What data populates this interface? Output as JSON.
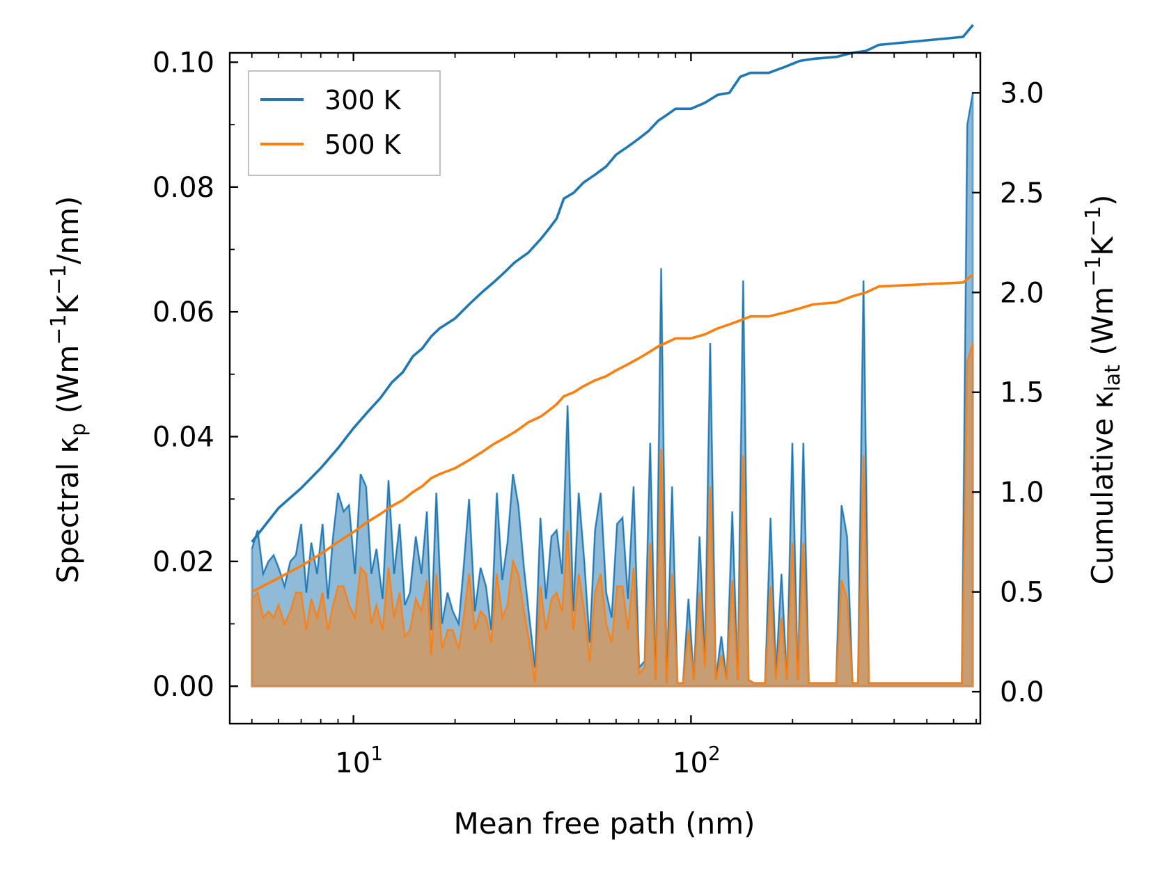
{
  "chart_data": {
    "type": "area+line (dual y-axis)",
    "xscale": "log",
    "xlim": [
      4.3,
      720
    ],
    "xlabel": "Mean free path (nm)",
    "x_tick_labels": [
      {
        "base": "10",
        "exp": "1",
        "value": 10
      },
      {
        "base": "10",
        "exp": "2",
        "value": 100
      }
    ],
    "left_axis": {
      "label_main": "Spectral κ",
      "label_sub": "p",
      "label_units_a": " (Wm",
      "label_sup_a": "−1",
      "label_units_b": "K",
      "label_sup_b": "−1",
      "label_units_c": "/nm)",
      "ylim": [
        -0.006,
        0.1015
      ],
      "ticks": [
        0.0,
        0.02,
        0.04,
        0.06,
        0.08,
        0.1
      ],
      "tick_labels": [
        "0.00",
        "0.02",
        "0.04",
        "0.06",
        "0.08",
        "0.10"
      ]
    },
    "right_axis": {
      "label_main": "Cumulative κ",
      "label_sub": "lat",
      "label_units_a": " (Wm",
      "label_sup_a": "−1",
      "label_units_b": "K",
      "label_sup_b": "−1",
      "label_units_c": ")",
      "ylim": [
        -0.16,
        3.2
      ],
      "ticks": [
        0.0,
        0.5,
        1.0,
        1.5,
        2.0,
        2.5,
        3.0
      ],
      "tick_labels": [
        "0.0",
        "0.5",
        "1.0",
        "1.5",
        "2.0",
        "2.5",
        "3.0"
      ]
    },
    "legend": {
      "position": "top-left",
      "entries": [
        {
          "label": "300 K",
          "color": "#1f77b4"
        },
        {
          "label": "500 K",
          "color": "#ff7f0e"
        }
      ]
    },
    "spectral": {
      "x": [
        5.0,
        5.2,
        5.4,
        5.6,
        5.8,
        6.0,
        6.25,
        6.5,
        6.75,
        7.0,
        7.25,
        7.5,
        7.8,
        8.1,
        8.4,
        8.7,
        9.0,
        9.35,
        9.7,
        10.1,
        10.5,
        10.9,
        11.3,
        11.7,
        12.2,
        12.7,
        13.2,
        13.7,
        14.2,
        14.7,
        15.3,
        15.9,
        16.5,
        17.0,
        17.6,
        18.3,
        19.0,
        19.7,
        20.5,
        21.2,
        22.0,
        22.9,
        23.8,
        24.7,
        25.6,
        26.6,
        27.6,
        28.6,
        29.7,
        30.8,
        32.0,
        33.2,
        34.5,
        35.8,
        37.2,
        38.6,
        40.0,
        41.5,
        43.1,
        44.8,
        46.5,
        48.3,
        50.1,
        52.0,
        54.0,
        56.1,
        58.2,
        60.4,
        62.7,
        65.1,
        67.6,
        70.2,
        72.9,
        75.7,
        78.6,
        81.6,
        84.7,
        87.9,
        91.2,
        94.7,
        98.3,
        102.0,
        106.0,
        110.0,
        114.0,
        118.5,
        123.0,
        127.6,
        132.5,
        137.6,
        142.8,
        148.2,
        153.8,
        159.7,
        165.8,
        172.1,
        178.6,
        185.4,
        192.4,
        199.7,
        207.3,
        215.2,
        223.4,
        231.9,
        240.7,
        249.8,
        259.3,
        269.2,
        279.4,
        290.0,
        301.0,
        312.5,
        324.4,
        336.7,
        349.5,
        362.8,
        376.6,
        390.9,
        405.8,
        421.2,
        437.2,
        453.8,
        471.1,
        489.0,
        507.5,
        526.8,
        546.8,
        567.6,
        589.2,
        611.6,
        634.8,
        658.9,
        684.0
      ],
      "series_300K": [
        0.022,
        0.025,
        0.018,
        0.02,
        0.021,
        0.019,
        0.016,
        0.02,
        0.021,
        0.026,
        0.015,
        0.023,
        0.018,
        0.026,
        0.014,
        0.024,
        0.031,
        0.028,
        0.029,
        0.018,
        0.034,
        0.032,
        0.018,
        0.022,
        0.014,
        0.033,
        0.018,
        0.026,
        0.013,
        0.015,
        0.024,
        0.018,
        0.028,
        0.009,
        0.031,
        0.01,
        0.015,
        0.012,
        0.01,
        0.019,
        0.03,
        0.012,
        0.019,
        0.016,
        0.009,
        0.031,
        0.017,
        0.023,
        0.034,
        0.029,
        0.019,
        0.011,
        0.003,
        0.027,
        0.014,
        0.024,
        0.025,
        0.018,
        0.045,
        0.012,
        0.031,
        0.02,
        0.007,
        0.025,
        0.031,
        0.015,
        0.011,
        0.026,
        0.027,
        0.014,
        0.032,
        0.003,
        0.004,
        0.039,
        0.001,
        0.067,
        0.0005,
        0.032,
        0.0005,
        0.0005,
        0.014,
        0.001,
        0.024,
        0.004,
        0.055,
        0.001,
        0.008,
        0.001,
        0.028,
        0.001,
        0.065,
        0.001,
        0.0005,
        0.0005,
        0.0005,
        0.027,
        0.002,
        0.018,
        0.001,
        0.039,
        0.001,
        0.039,
        0.0005,
        0.0005,
        0.0005,
        0.0005,
        0.0005,
        0.0005,
        0.029,
        0.024,
        0.0005,
        0.0005,
        0.065,
        0.0005,
        0.0005,
        0.0005,
        0.0005,
        0.0005,
        0.0005,
        0.0005,
        0.0005,
        0.0005,
        0.0005,
        0.0005,
        0.0005,
        0.0005,
        0.0005,
        0.0005,
        0.0005,
        0.0005,
        0.0005,
        0.09,
        0.095
      ],
      "series_500K": [
        0.014,
        0.015,
        0.011,
        0.012,
        0.011,
        0.013,
        0.01,
        0.012,
        0.015,
        0.015,
        0.009,
        0.014,
        0.011,
        0.015,
        0.009,
        0.013,
        0.016,
        0.016,
        0.013,
        0.011,
        0.019,
        0.018,
        0.01,
        0.013,
        0.009,
        0.019,
        0.011,
        0.015,
        0.008,
        0.009,
        0.014,
        0.012,
        0.017,
        0.005,
        0.018,
        0.006,
        0.009,
        0.009,
        0.006,
        0.011,
        0.018,
        0.009,
        0.012,
        0.011,
        0.007,
        0.018,
        0.011,
        0.013,
        0.02,
        0.018,
        0.012,
        0.007,
        0.0005,
        0.016,
        0.009,
        0.014,
        0.015,
        0.012,
        0.025,
        0.009,
        0.018,
        0.012,
        0.004,
        0.015,
        0.018,
        0.01,
        0.007,
        0.016,
        0.016,
        0.009,
        0.019,
        0.002,
        0.003,
        0.023,
        0.001,
        0.038,
        0.0005,
        0.018,
        0.0005,
        0.0005,
        0.009,
        0.001,
        0.015,
        0.003,
        0.032,
        0.001,
        0.005,
        0.001,
        0.017,
        0.001,
        0.037,
        0.001,
        0.0005,
        0.0005,
        0.0005,
        0.016,
        0.001,
        0.011,
        0.001,
        0.023,
        0.001,
        0.023,
        0.0005,
        0.0005,
        0.0005,
        0.0005,
        0.0005,
        0.0005,
        0.017,
        0.014,
        0.0005,
        0.0005,
        0.037,
        0.0005,
        0.0005,
        0.0005,
        0.0005,
        0.0005,
        0.0005,
        0.0005,
        0.0005,
        0.0005,
        0.0005,
        0.0005,
        0.0005,
        0.0005,
        0.0005,
        0.0005,
        0.0005,
        0.0005,
        0.0005,
        0.052,
        0.055
      ]
    },
    "cumulative": {
      "series_300K": {
        "x": [
          5.0,
          6.0,
          7.0,
          8.0,
          9.0,
          10.0,
          11.0,
          12.0,
          13.0,
          14.0,
          15.0,
          16.0,
          17.0,
          18.0,
          20.0,
          22.0,
          24.0,
          26.0,
          28.0,
          30.0,
          33.0,
          36.0,
          38.0,
          40.0,
          42.0,
          45.0,
          48.0,
          52.0,
          56.0,
          60.0,
          65.0,
          70.0,
          75.0,
          80.0,
          85.0,
          90.0,
          100.0,
          110.0,
          120.0,
          130.0,
          140.0,
          150.0,
          170.0,
          190.0,
          210.0,
          230.0,
          270.0,
          300.0,
          330.0,
          360.0,
          640.0,
          685.0
        ],
        "values": [
          0.75,
          0.92,
          1.02,
          1.12,
          1.22,
          1.32,
          1.4,
          1.47,
          1.55,
          1.6,
          1.68,
          1.72,
          1.78,
          1.82,
          1.87,
          1.94,
          2.0,
          2.05,
          2.1,
          2.15,
          2.2,
          2.27,
          2.32,
          2.37,
          2.47,
          2.5,
          2.55,
          2.59,
          2.63,
          2.69,
          2.73,
          2.77,
          2.81,
          2.86,
          2.89,
          2.92,
          2.92,
          2.95,
          2.99,
          3.0,
          3.08,
          3.1,
          3.1,
          3.13,
          3.16,
          3.17,
          3.18,
          3.2,
          3.21,
          3.24,
          3.28,
          3.34
        ]
      },
      "series_500K": {
        "x": [
          5.0,
          6.0,
          7.0,
          8.0,
          9.0,
          10.0,
          11.0,
          12.0,
          13.0,
          14.0,
          15.0,
          16.0,
          17.0,
          18.0,
          20.0,
          22.0,
          24.0,
          26.0,
          28.0,
          30.0,
          33.0,
          36.0,
          38.0,
          40.0,
          42.0,
          45.0,
          48.0,
          52.0,
          56.0,
          60.0,
          65.0,
          70.0,
          75.0,
          80.0,
          85.0,
          90.0,
          100.0,
          110.0,
          120.0,
          130.0,
          140.0,
          150.0,
          170.0,
          190.0,
          210.0,
          230.0,
          270.0,
          300.0,
          330.0,
          360.0,
          640.0,
          685.0
        ],
        "values": [
          0.5,
          0.57,
          0.63,
          0.69,
          0.75,
          0.8,
          0.85,
          0.89,
          0.93,
          0.96,
          1.0,
          1.03,
          1.07,
          1.09,
          1.12,
          1.16,
          1.2,
          1.24,
          1.27,
          1.3,
          1.35,
          1.38,
          1.41,
          1.44,
          1.48,
          1.5,
          1.53,
          1.56,
          1.58,
          1.61,
          1.64,
          1.67,
          1.7,
          1.73,
          1.75,
          1.77,
          1.77,
          1.79,
          1.82,
          1.84,
          1.86,
          1.88,
          1.88,
          1.9,
          1.92,
          1.94,
          1.95,
          1.98,
          2.0,
          2.03,
          2.05,
          2.09
        ]
      }
    }
  }
}
